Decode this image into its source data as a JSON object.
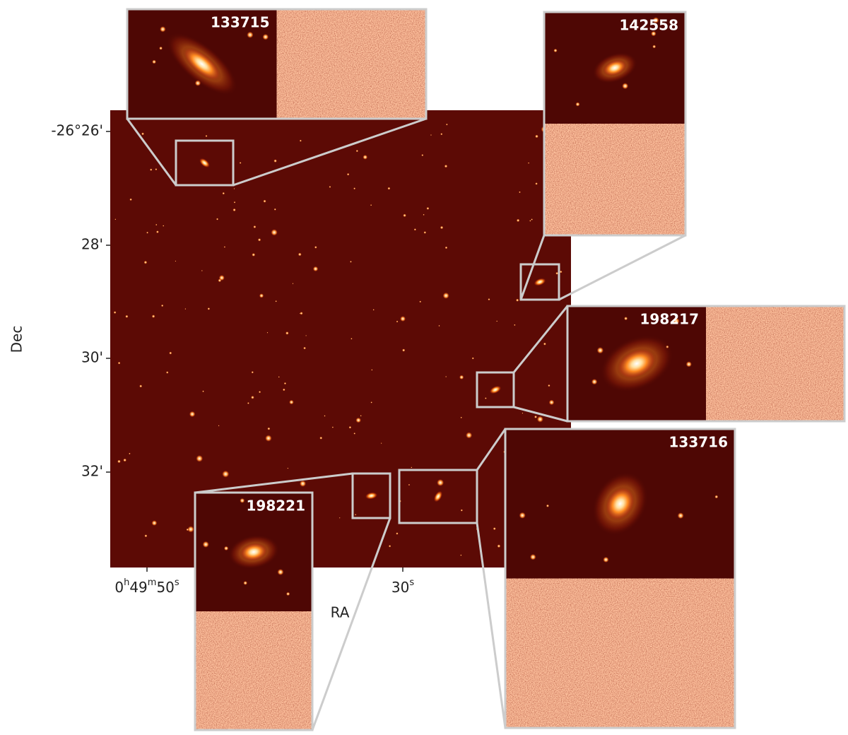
{
  "axes": {
    "y_label": "Dec",
    "x_label": "RA",
    "y_ticks": [
      "-26°26'",
      "28'",
      "30'",
      "32'"
    ],
    "x_ticks": [
      {
        "parts": [
          "0",
          "h",
          "49",
          "m",
          "50",
          "s"
        ]
      },
      {
        "parts": [
          "30",
          "s"
        ]
      }
    ]
  },
  "insets": [
    {
      "label": "133715"
    },
    {
      "label": "142558"
    },
    {
      "label": "198217"
    },
    {
      "label": "133716"
    },
    {
      "label": "198221"
    }
  ]
}
